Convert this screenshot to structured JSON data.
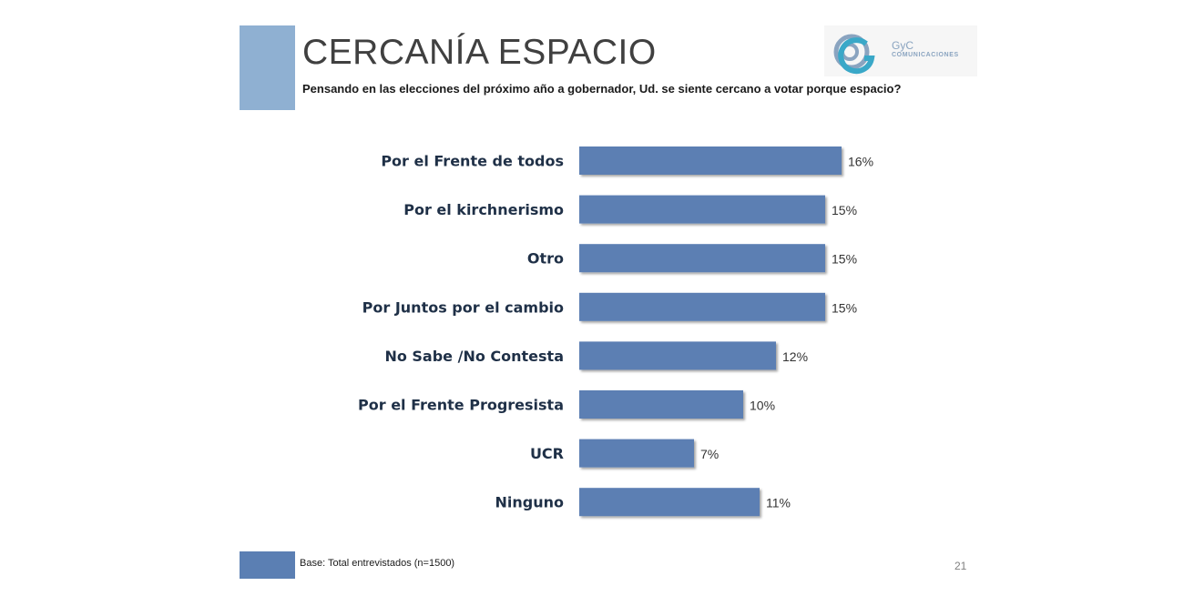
{
  "header": {
    "title": "CERCANÍA ESPACIO",
    "question": "Pensando en las elecciones del próximo año a gobernador, Ud. se siente cercano a votar porque espacio?"
  },
  "logo": {
    "name": "GyC",
    "tagline": "COMUNICACIONES"
  },
  "footer": {
    "base": "Base: Total entrevistados (n=1500)",
    "page_number": "21"
  },
  "colors": {
    "bar": "#5b7fb3",
    "accent_block": "#8fb0d2",
    "label_text": "#1f3047"
  },
  "chart_data": {
    "type": "bar",
    "orientation": "horizontal",
    "categories": [
      "Por el Frente de todos",
      "Por el kirchnerismo",
      "Otro",
      "Por Juntos por el cambio",
      "No Sabe /No Contesta",
      "Por el Frente Progresista",
      "UCR",
      "Ninguno"
    ],
    "values": [
      16,
      15,
      15,
      15,
      12,
      10,
      7,
      11
    ],
    "value_labels": [
      "16%",
      "15%",
      "15%",
      "15%",
      "12%",
      "10%",
      "7%",
      "11%"
    ],
    "unit": "%",
    "grid": false,
    "legend": "none"
  }
}
